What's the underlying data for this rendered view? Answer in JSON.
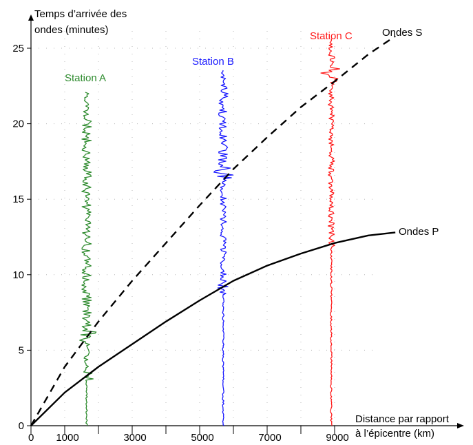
{
  "chart_data": {
    "type": "line",
    "title": "",
    "ylabel": "Temps d'arrivée des ondes (minutes)",
    "ylabel_lines": [
      "Temps d’arrivée des",
      "ondes (minutes)"
    ],
    "xlabel": "Distance par rapport à l'épicentre (km)",
    "xlabel_lines": [
      "Distance par rapport",
      "à l’épicentre (km)"
    ],
    "xlim": [
      0,
      10000
    ],
    "ylim": [
      0,
      26
    ],
    "x_ticks": [
      0,
      1000,
      2000,
      3000,
      4000,
      5000,
      6000,
      7000,
      8000,
      9000
    ],
    "x_tick_labels": [
      "0",
      "1000",
      "3000",
      "5000",
      "7000",
      "9000"
    ],
    "x_tick_label_values": [
      0,
      1000,
      3000,
      5000,
      7000,
      9000
    ],
    "y_ticks": [
      0,
      5,
      10,
      15,
      20,
      25
    ],
    "y_tick_labels": [
      "0",
      "5",
      "10",
      "15",
      "20",
      "25"
    ],
    "grid": "dotted",
    "series": [
      {
        "name": "Ondes P",
        "style": "solid",
        "color": "#000000",
        "x": [
          0,
          1000,
          2000,
          3000,
          4000,
          5000,
          6000,
          7000,
          8000,
          9000,
          10000,
          10800
        ],
        "y": [
          0,
          2.2,
          3.9,
          5.4,
          6.9,
          8.3,
          9.6,
          10.6,
          11.4,
          12.1,
          12.6,
          12.8
        ]
      },
      {
        "name": "Ondes S",
        "style": "dashed",
        "color": "#000000",
        "x": [
          0,
          1000,
          2000,
          3000,
          4000,
          5000,
          6000,
          7000,
          8000,
          9000,
          10000,
          10800
        ],
        "y": [
          0,
          3.9,
          6.9,
          9.6,
          12.1,
          14.6,
          17.0,
          19.1,
          21.1,
          22.8,
          24.6,
          25.8
        ]
      }
    ],
    "stations": [
      {
        "name": "Station A",
        "color": "#2e8b2e",
        "x": 1650,
        "p_arrival": 3.1,
        "s_arrival": 5.6,
        "top": 22.1
      },
      {
        "name": "Station B",
        "color": "#1a1aff",
        "x": 5700,
        "p_arrival": 8.7,
        "s_arrival": 16.4,
        "top": 23.6
      },
      {
        "name": "Station C",
        "color": "#ff1a1a",
        "x": 8900,
        "p_arrival": 11.8,
        "s_arrival": 22.8,
        "top": 25.7
      }
    ]
  }
}
